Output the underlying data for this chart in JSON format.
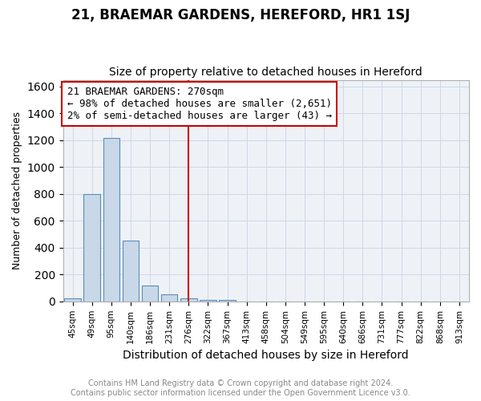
{
  "title": "21, BRAEMAR GARDENS, HEREFORD, HR1 1SJ",
  "subtitle": "Size of property relative to detached houses in Hereford",
  "xlabel": "Distribution of detached houses by size in Hereford",
  "ylabel": "Number of detached properties",
  "categories": [
    "45sqm",
    "49sqm",
    "95sqm",
    "140sqm",
    "186sqm",
    "231sqm",
    "276sqm",
    "322sqm",
    "367sqm",
    "413sqm",
    "458sqm",
    "504sqm",
    "549sqm",
    "595sqm",
    "640sqm",
    "686sqm",
    "731sqm",
    "777sqm",
    "822sqm",
    "868sqm",
    "913sqm"
  ],
  "values": [
    20,
    800,
    1220,
    450,
    120,
    50,
    20,
    10,
    10,
    0,
    0,
    0,
    0,
    0,
    0,
    0,
    0,
    0,
    0,
    0,
    0
  ],
  "bar_color": "#c8d8e8",
  "bar_edge_color": "#5b8db8",
  "ylim": [
    0,
    1650
  ],
  "yticks": [
    0,
    200,
    400,
    600,
    800,
    1000,
    1200,
    1400,
    1600
  ],
  "vline_x_index": 6,
  "vline_color": "#cc0000",
  "annotation_line1": "21 BRAEMAR GARDENS: 270sqm",
  "annotation_line2": "← 98% of detached houses are smaller (2,651)",
  "annotation_line3": "2% of semi-detached houses are larger (43) →",
  "annotation_box_color": "#cc0000",
  "footer_line1": "Contains HM Land Registry data © Crown copyright and database right 2024.",
  "footer_line2": "Contains public sector information licensed under the Open Government Licence v3.0.",
  "title_fontsize": 12,
  "subtitle_fontsize": 10,
  "xlabel_fontsize": 10,
  "ylabel_fontsize": 9,
  "annotation_fontsize": 9,
  "footer_fontsize": 7,
  "axes_bg_color": "#eef2f7",
  "grid_color": "#d0d8e4"
}
